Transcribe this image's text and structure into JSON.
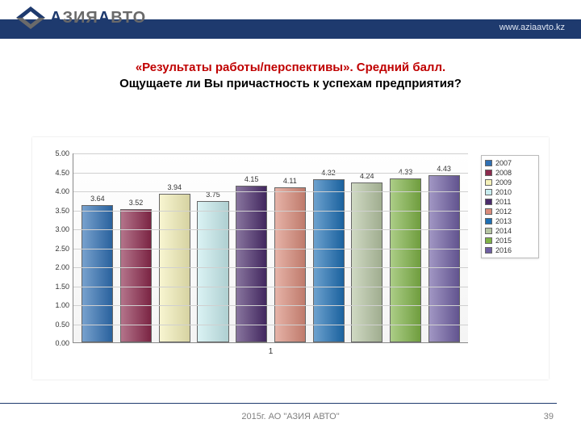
{
  "header": {
    "logo_text_accent": "А",
    "logo_text_part1": "ЗИЯ",
    "logo_text_accent2": "А",
    "logo_text_part2": "ВТО",
    "url": "www.aziaavto.kz",
    "band_color": "#1e3a6e",
    "logo_accent_color": "#1e3a6e",
    "logo_rest_color": "#6a6a6a"
  },
  "title": {
    "line1": "«Результаты работы/перспективы». Средний балл.",
    "line2": "Ощущаете ли Вы причастность к успехам предприятия?",
    "line1_color": "#c00000",
    "line2_color": "#000000",
    "fontsize": 15,
    "fontweight": 700
  },
  "chart": {
    "type": "bar",
    "x_category_label": "1",
    "ylim": [
      0,
      5.0
    ],
    "ytick_step": 0.5,
    "yticks": [
      "0.00",
      "0.50",
      "1.00",
      "1.50",
      "2.00",
      "2.50",
      "3.00",
      "3.50",
      "4.00",
      "4.50",
      "5.00"
    ],
    "grid_color": "#d0d0d0",
    "axis_color": "#888888",
    "background_color": "#ffffff",
    "tick_fontsize": 9,
    "value_label_fontsize": 9,
    "bar_border_color": "#666666",
    "series": [
      {
        "year": "2007",
        "value": 3.64,
        "color": "#2f6fb3"
      },
      {
        "year": "2008",
        "value": 3.52,
        "color": "#8c2a4d"
      },
      {
        "year": "2009",
        "value": 3.94,
        "color": "#f4f0b8"
      },
      {
        "year": "2010",
        "value": 3.75,
        "color": "#c7ecee"
      },
      {
        "year": "2011",
        "value": 4.15,
        "color": "#4a2c6b"
      },
      {
        "year": "2012",
        "value": 4.11,
        "color": "#d98b7a"
      },
      {
        "year": "2013",
        "value": 4.32,
        "color": "#1e6fb4"
      },
      {
        "year": "2014",
        "value": 4.24,
        "color": "#b6c5a3"
      },
      {
        "year": "2015",
        "value": 4.33,
        "color": "#7fb347"
      },
      {
        "year": "2016",
        "value": 4.43,
        "color": "#6f5fa3"
      }
    ],
    "legend_border_color": "#bbbbbb"
  },
  "footer": {
    "text": "2015г. АО \"АЗИЯ АВТО\"",
    "text_color": "#808080",
    "page_number": "39",
    "divider_color": "#1e3a6e"
  }
}
